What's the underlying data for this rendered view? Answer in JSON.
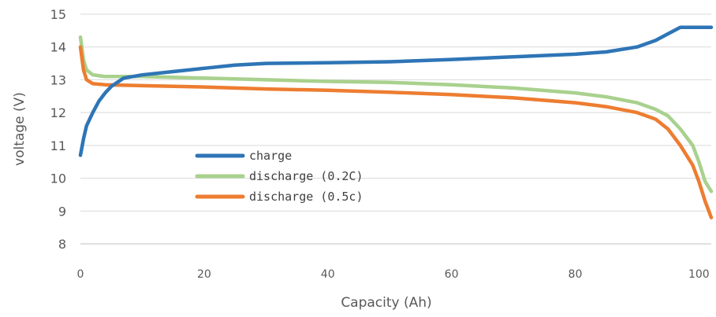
{
  "chart_data": {
    "type": "line",
    "title": "",
    "xlabel": "Capacity (Ah)",
    "ylabel": "voltage (V)",
    "xlim": [
      0,
      102
    ],
    "ylim": [
      8,
      15
    ],
    "x_ticks": [
      0,
      20,
      40,
      60,
      80,
      100
    ],
    "y_ticks": [
      8,
      9,
      10,
      11,
      12,
      13,
      14,
      15
    ],
    "grid": "horizontal",
    "legend_position": "center-left",
    "series": [
      {
        "name": "charge",
        "color": "#2E75B6",
        "points": [
          [
            0,
            10.7
          ],
          [
            0.5,
            11.2
          ],
          [
            1,
            11.6
          ],
          [
            2,
            12.0
          ],
          [
            3,
            12.35
          ],
          [
            4,
            12.6
          ],
          [
            5,
            12.8
          ],
          [
            7,
            13.05
          ],
          [
            10,
            13.15
          ],
          [
            15,
            13.25
          ],
          [
            20,
            13.35
          ],
          [
            25,
            13.45
          ],
          [
            30,
            13.5
          ],
          [
            40,
            13.52
          ],
          [
            50,
            13.55
          ],
          [
            60,
            13.62
          ],
          [
            70,
            13.7
          ],
          [
            80,
            13.78
          ],
          [
            85,
            13.85
          ],
          [
            90,
            14.0
          ],
          [
            93,
            14.2
          ],
          [
            95,
            14.4
          ],
          [
            97,
            14.6
          ],
          [
            102,
            14.6
          ]
        ]
      },
      {
        "name": "discharge (0.2C)",
        "color": "#A9D18E",
        "points": [
          [
            0,
            14.3
          ],
          [
            0.5,
            13.6
          ],
          [
            1,
            13.3
          ],
          [
            2,
            13.15
          ],
          [
            4,
            13.1
          ],
          [
            10,
            13.1
          ],
          [
            20,
            13.05
          ],
          [
            30,
            13.0
          ],
          [
            40,
            12.95
          ],
          [
            50,
            12.92
          ],
          [
            60,
            12.85
          ],
          [
            70,
            12.75
          ],
          [
            80,
            12.6
          ],
          [
            85,
            12.48
          ],
          [
            90,
            12.3
          ],
          [
            93,
            12.1
          ],
          [
            95,
            11.9
          ],
          [
            97,
            11.5
          ],
          [
            99,
            11.0
          ],
          [
            100,
            10.5
          ],
          [
            101,
            9.9
          ],
          [
            102,
            9.6
          ]
        ]
      },
      {
        "name": "discharge (0.5c)",
        "color": "#ED7D31",
        "points": [
          [
            0,
            14.0
          ],
          [
            0.5,
            13.3
          ],
          [
            1,
            13.0
          ],
          [
            2,
            12.88
          ],
          [
            4,
            12.85
          ],
          [
            10,
            12.82
          ],
          [
            20,
            12.78
          ],
          [
            30,
            12.72
          ],
          [
            40,
            12.68
          ],
          [
            50,
            12.62
          ],
          [
            60,
            12.55
          ],
          [
            70,
            12.45
          ],
          [
            80,
            12.3
          ],
          [
            85,
            12.18
          ],
          [
            90,
            12.0
          ],
          [
            93,
            11.8
          ],
          [
            95,
            11.5
          ],
          [
            97,
            11.0
          ],
          [
            99,
            10.4
          ],
          [
            100,
            9.9
          ],
          [
            101,
            9.3
          ],
          [
            102,
            8.8
          ]
        ]
      }
    ]
  }
}
